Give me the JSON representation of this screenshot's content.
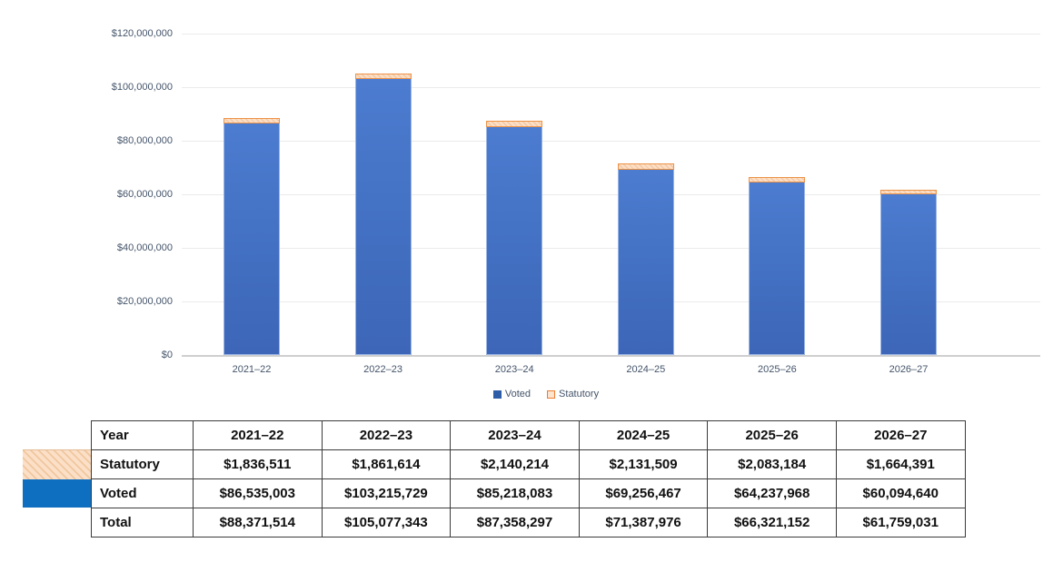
{
  "chart_data": {
    "type": "bar",
    "stacked": true,
    "categories": [
      "2021–22",
      "2022–23",
      "2023–24",
      "2024–25",
      "2025–26",
      "2026–27"
    ],
    "series": [
      {
        "name": "Voted",
        "color": "#4472C4",
        "values": [
          86535003,
          103215729,
          85218083,
          69256467,
          64237968,
          60094640
        ]
      },
      {
        "name": "Statutory",
        "color": "#FBDEC5",
        "values": [
          1836511,
          1861614,
          2140214,
          2131509,
          2083184,
          1664391
        ]
      }
    ],
    "totals": [
      88371514,
      105077343,
      87358297,
      71387976,
      66321152,
      61759031
    ],
    "title": "",
    "xlabel": "",
    "ylabel": "",
    "ylim": [
      0,
      120000000
    ],
    "y_ticks": [
      "$120,000,000",
      "$100,000,000",
      "$80,000,000",
      "$60,000,000",
      "$40,000,000",
      "$20,000,000",
      "$0"
    ],
    "grid": true,
    "legend_position": "bottom"
  },
  "legend": {
    "voted_label": "Voted",
    "statutory_label": "Statutory"
  },
  "table": {
    "header": [
      "Year",
      "2021–22",
      "2022–23",
      "2023–24",
      "2024–25",
      "2025–26",
      "2026–27"
    ],
    "rows": [
      {
        "label": "Statutory",
        "values": [
          "$1,836,511",
          "$1,861,614",
          "$2,140,214",
          "$2,131,509",
          "$2,083,184",
          "$1,664,391"
        ]
      },
      {
        "label": "Voted",
        "values": [
          "$86,535,003",
          "$103,215,729",
          "$85,218,083",
          "$69,256,467",
          "$64,237,968",
          "$60,094,640"
        ]
      },
      {
        "label": "Total",
        "values": [
          "$88,371,514",
          "$105,077,343",
          "$87,358,297",
          "$71,387,976",
          "$66,321,152",
          "$61,759,031"
        ]
      }
    ]
  },
  "colors": {
    "voted_bar": "#4472C4",
    "statutory_fill": "#FBDEC5",
    "statutory_border": "#ED9348",
    "voted_key_swatch": "#0E6FC0",
    "axis_text": "#44546A",
    "gridline": "#EBEBEB"
  }
}
